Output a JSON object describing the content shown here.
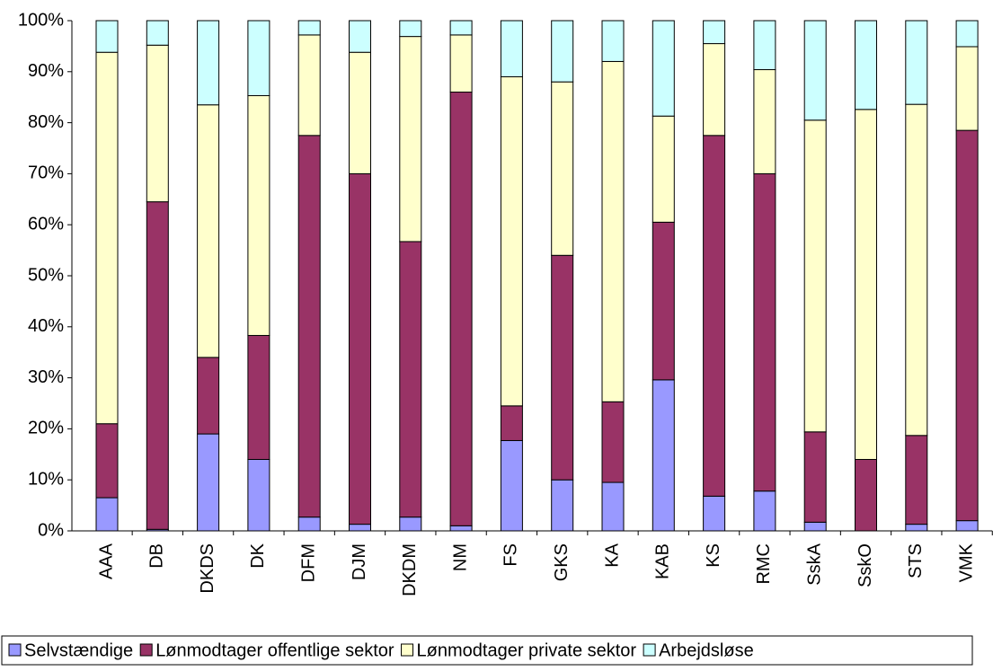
{
  "chart_data": {
    "type": "stacked_bar_100",
    "categories": [
      "AAA",
      "DB",
      "DKDS",
      "DK",
      "DFM",
      "DJM",
      "DKDM",
      "NM",
      "FS",
      "GKS",
      "KA",
      "KAB",
      "KS",
      "RMC",
      "SskA",
      "SskO",
      "STS",
      "VMK"
    ],
    "series": [
      {
        "name": "Selvstændige",
        "color": "#9999ff",
        "values": [
          6.5,
          0.3,
          19,
          14,
          2.7,
          1.3,
          2.7,
          1,
          17.7,
          10,
          9.5,
          29.6,
          6.8,
          7.8,
          1.7,
          0,
          1.3,
          2
        ]
      },
      {
        "name": "Lønmodtager offentlige sektor",
        "color": "#993366",
        "values": [
          14.5,
          64.2,
          15,
          24.3,
          74.8,
          68.7,
          54,
          85,
          6.8,
          44,
          15.8,
          30.9,
          70.7,
          62.2,
          17.7,
          14,
          17.4,
          76.5
        ]
      },
      {
        "name": "Lønmodtager private sektor",
        "color": "#ffffcc",
        "values": [
          72.8,
          30.7,
          49.5,
          47,
          19.7,
          23.8,
          40.2,
          11.2,
          64.5,
          34,
          66.7,
          20.8,
          18,
          20.4,
          61.1,
          68.6,
          64.9,
          16.4
        ]
      },
      {
        "name": "Arbejdsløse",
        "color": "#ccffff",
        "values": [
          6.2,
          4.8,
          16.5,
          14.7,
          2.8,
          6.2,
          3.1,
          2.8,
          11,
          12,
          8,
          18.7,
          4.5,
          9.6,
          19.5,
          17.4,
          16.4,
          5.1
        ]
      }
    ],
    "ylim": [
      0,
      100
    ],
    "yticks": [
      {
        "value": 0,
        "label": "0%"
      },
      {
        "value": 10,
        "label": "10%"
      },
      {
        "value": 20,
        "label": "20%"
      },
      {
        "value": 30,
        "label": "30%"
      },
      {
        "value": 40,
        "label": "40%"
      },
      {
        "value": 50,
        "label": "50%"
      },
      {
        "value": 60,
        "label": "60%"
      },
      {
        "value": 70,
        "label": "70%"
      },
      {
        "value": 80,
        "label": "80%"
      },
      {
        "value": 90,
        "label": "90%"
      },
      {
        "value": 100,
        "label": "100%"
      }
    ],
    "legend": "bottom"
  }
}
